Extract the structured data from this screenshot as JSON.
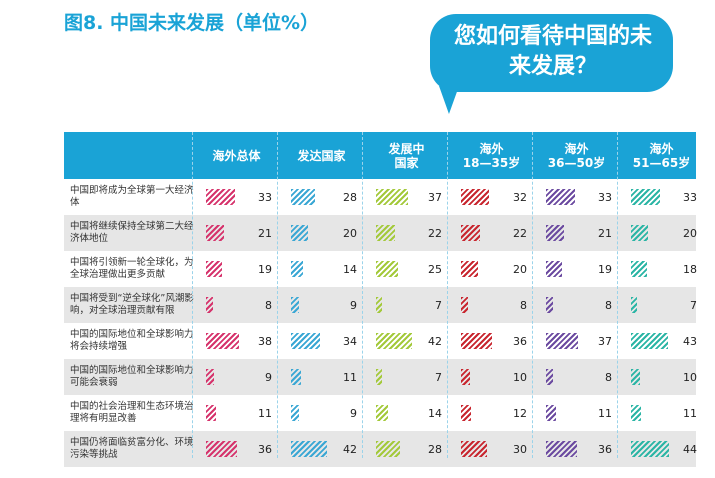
{
  "title": "图8. 中国未来发展（单位%）",
  "bubble_text": "您如何看待中国的未来发展？",
  "colors": {
    "accent": "#1aa3d6",
    "series": [
      "#d6336c",
      "#3aa7d4",
      "#a3c93a",
      "#c8262f",
      "#6b4aa0",
      "#2bb5a5"
    ]
  },
  "chart_data": {
    "type": "bar",
    "series": [
      {
        "name": "海外总体",
        "values": [
          33,
          21,
          19,
          8,
          38,
          9,
          11,
          36
        ]
      },
      {
        "name": "发达国家",
        "values": [
          28,
          20,
          14,
          9,
          34,
          11,
          9,
          42
        ]
      },
      {
        "name": "发展中国家",
        "values": [
          37,
          22,
          25,
          7,
          42,
          7,
          14,
          28
        ]
      },
      {
        "name": "海外18—35岁",
        "values": [
          32,
          22,
          20,
          8,
          36,
          10,
          12,
          30
        ]
      },
      {
        "name": "海外36—50岁",
        "values": [
          33,
          21,
          19,
          8,
          37,
          8,
          11,
          36
        ]
      },
      {
        "name": "海外51—65岁",
        "values": [
          33,
          20,
          18,
          7,
          43,
          10,
          11,
          44
        ]
      }
    ],
    "categories": [
      "中国即将成为全球第一大经济体",
      "中国将继续保持全球第二大经济体地位",
      "中国将引领新一轮全球化，为全球治理做出更多贡献",
      "中国将受到“逆全球化”风潮影响，对全球治理贡献有限",
      "中国的国际地位和全球影响力将会持续增强",
      "中国的国际地位和全球影响力可能会衰弱",
      "中国的社会治理和生态环境治理将有明显改善",
      "中国仍将面临贫富分化、环境污染等挑战"
    ],
    "header_labels": [
      "海外总体",
      "发达国家",
      "发展中\n国家",
      "海外\n18—35岁",
      "海外\n36—50岁",
      "海外\n51—65岁"
    ]
  }
}
